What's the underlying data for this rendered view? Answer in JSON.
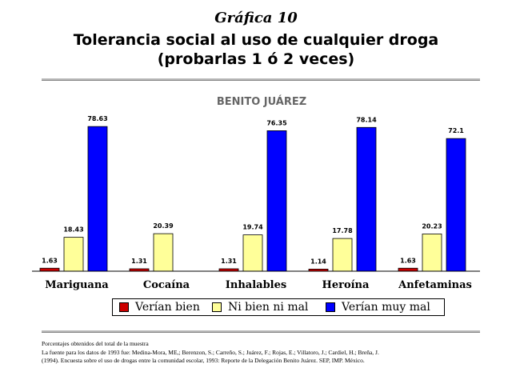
{
  "page": {
    "kicker": "Gráfica 10",
    "title_line1": "Tolerancia social al uso de cualquier droga",
    "title_line2": "(probarlas 1 ó 2 veces)"
  },
  "chart_data": {
    "type": "bar",
    "title": "BENITO JUÁREZ",
    "categories": [
      "Mariguana",
      "Cocaína",
      "Inhalables",
      "Heroína",
      "Anfetaminas"
    ],
    "series": [
      {
        "name": "Verían bien",
        "color": "#cc0000",
        "values": [
          1.63,
          1.31,
          1.31,
          1.14,
          1.63
        ]
      },
      {
        "name": "Ni bien ni mal",
        "color": "#ffff99",
        "values": [
          18.43,
          20.39,
          19.74,
          17.78,
          20.23
        ]
      },
      {
        "name": "Verían muy mal",
        "color": "#0000ff",
        "values": [
          78.63,
          null,
          76.35,
          78.14,
          72.1
        ]
      }
    ],
    "value_labels": [
      [
        "1.63",
        "1.31",
        "1.31",
        "1.14",
        "1.63"
      ],
      [
        "18.43",
        "20.39",
        "19.74",
        "17.78",
        "20.23"
      ],
      [
        "78.63",
        "",
        "76.35",
        "78.14",
        "72.1"
      ]
    ],
    "ylim": [
      0,
      100
    ],
    "grid": false,
    "legend_position": "bottom"
  },
  "footnotes": {
    "line1": "Porcentajes obtenidos del total de la muestra",
    "line2": "La fuente para los datos de 1993 fue: Medina-Mora, ME,; Berenzon, S.; Carreño, S.; Juárez, F.; Rojas, E.; Villatoro, J.; Cardiel, H.; Breña, J.",
    "line3": "(1994). Encuesta sobre el uso de drogas entre la comunidad escolar, 1993: Reporte de la Delegación Benito Juárez. SEP, IMP. México."
  }
}
